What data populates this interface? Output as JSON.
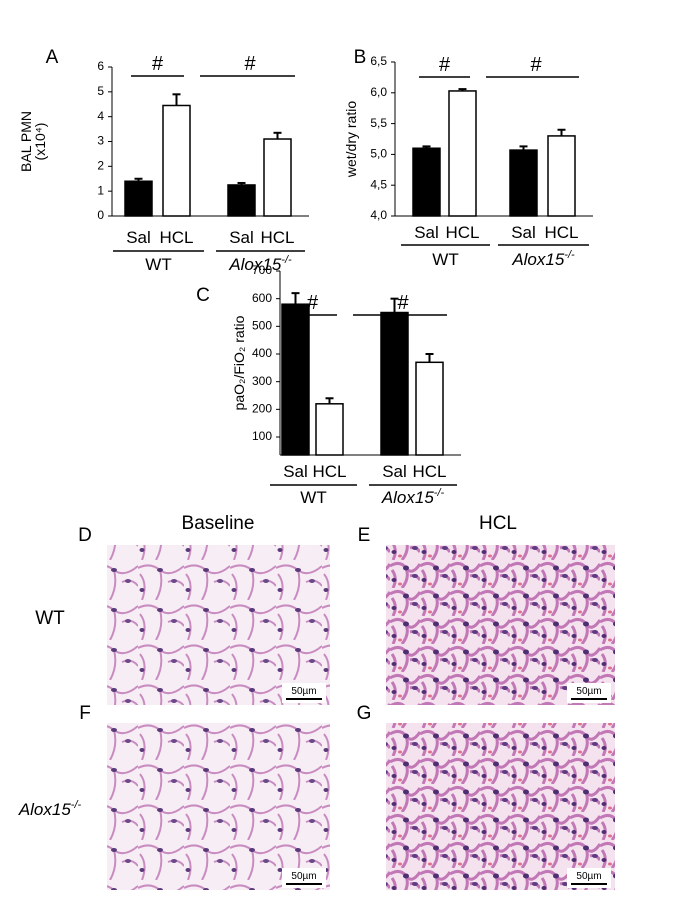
{
  "chart_data": [
    {
      "type": "bar",
      "panel": "A",
      "ylabel": "BAL PMN",
      "ylabel_unit": "(x10⁴)",
      "categories": [
        "Sal",
        "HCL",
        "Sal",
        "HCL"
      ],
      "groups": [
        {
          "name": "WT"
        },
        {
          "name": "Alox15",
          "sup": "-/-"
        }
      ],
      "values": [
        1.4,
        4.45,
        1.25,
        3.1
      ],
      "errors": [
        0.1,
        0.45,
        0.08,
        0.25
      ],
      "colors": [
        "#000000",
        "#ffffff",
        "#000000",
        "#ffffff"
      ],
      "ylim": [
        0,
        6
      ],
      "yticks": [
        0,
        1,
        2,
        3,
        4,
        5,
        6
      ],
      "annotations": [
        "#",
        "#"
      ]
    },
    {
      "type": "bar",
      "panel": "B",
      "ylabel": "wet/dry ratio",
      "categories": [
        "Sal",
        "HCL",
        "Sal",
        "HCL"
      ],
      "groups": [
        {
          "name": "WT"
        },
        {
          "name": "Alox15",
          "sup": "-/-"
        }
      ],
      "values": [
        5.1,
        6.03,
        5.07,
        5.3
      ],
      "errors": [
        0.03,
        0.03,
        0.06,
        0.1
      ],
      "colors": [
        "#000000",
        "#ffffff",
        "#000000",
        "#ffffff"
      ],
      "ylim": [
        4.0,
        6.5
      ],
      "yticks": [
        {
          "value": 4.0,
          "label": "4,0"
        },
        {
          "value": 4.5,
          "label": "4,5"
        },
        {
          "value": 5.0,
          "label": "5,0"
        },
        {
          "value": 5.5,
          "label": "5,5"
        },
        {
          "value": 6.0,
          "label": "6,0"
        },
        {
          "value": 6.5,
          "label": "6,5"
        }
      ],
      "annotations": [
        "#",
        "#"
      ]
    },
    {
      "type": "bar",
      "panel": "C",
      "ylabel": "paO₂/FiO₂ ratio",
      "categories": [
        "Sal",
        "HCL",
        "Sal",
        "HCL"
      ],
      "groups": [
        {
          "name": "WT"
        },
        {
          "name": "Alox15",
          "sup": "-/-"
        }
      ],
      "values": [
        580,
        220,
        550,
        370
      ],
      "errors": [
        40,
        20,
        50,
        30
      ],
      "colors": [
        "#000000",
        "#ffffff",
        "#000000",
        "#ffffff"
      ],
      "ylim": [
        35,
        700
      ],
      "yticks": [
        100,
        200,
        300,
        400,
        500,
        600,
        700
      ],
      "annotations": [
        "#",
        "#"
      ]
    }
  ],
  "micrographs": {
    "columns": [
      "Baseline",
      "HCL"
    ],
    "rows": [
      {
        "name": "WT"
      },
      {
        "name": "Alox15",
        "sup": "-/-"
      }
    ],
    "panels": [
      {
        "label": "D",
        "scale": "50µm"
      },
      {
        "label": "E",
        "scale": "50µm"
      },
      {
        "label": "F",
        "scale": "50µm"
      },
      {
        "label": "G",
        "scale": "50µm"
      }
    ]
  }
}
